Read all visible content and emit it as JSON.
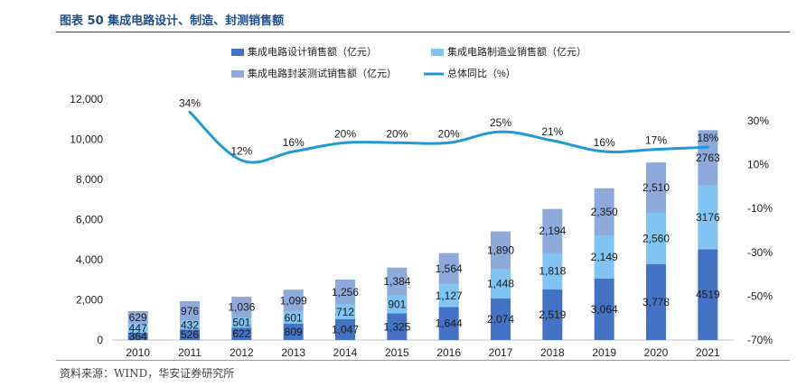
{
  "header": {
    "title": "图表 50 集成电路设计、制造、封测销售额"
  },
  "footer": {
    "source": "资料来源：WIND，华安证券研究所"
  },
  "chart_data": {
    "type": "bar",
    "stacked": true,
    "title": "图表 50 集成电路设计、制造、封测销售额",
    "categories": [
      "2010",
      "2011",
      "2012",
      "2013",
      "2014",
      "2015",
      "2016",
      "2017",
      "2018",
      "2019",
      "2020",
      "2021"
    ],
    "series": [
      {
        "name": "集成电路设计销售额（亿元）",
        "type": "bar",
        "axis": "left",
        "color": "#4472c4",
        "values": [
          364,
          526,
          622,
          809,
          1047,
          1325,
          1644,
          2074,
          2519,
          3064,
          3778,
          4519
        ],
        "labels": [
          "364",
          "526",
          "622",
          "809",
          "1,047",
          "1,325",
          "1,644",
          "2,074",
          "2,519",
          "3,064",
          "3,778",
          "4519"
        ]
      },
      {
        "name": "集成电路制造业销售额（亿元）",
        "type": "bar",
        "axis": "left",
        "color": "#7fc4f2",
        "values": [
          447,
          432,
          501,
          601,
          712,
          901,
          1127,
          1448,
          1818,
          2149,
          2560,
          3176
        ],
        "labels": [
          "447",
          "432",
          "501",
          "601",
          "712",
          "901",
          "1,127",
          "1,448",
          "1,818",
          "2,149",
          "2,560",
          "3176"
        ]
      },
      {
        "name": "集成电路封装测试销售额（亿元）",
        "type": "bar",
        "axis": "left",
        "color": "#8eaadb",
        "values": [
          629,
          976,
          1036,
          1099,
          1256,
          1384,
          1564,
          1890,
          2194,
          2350,
          2510,
          2763
        ],
        "labels": [
          "629",
          "976",
          "1,036",
          "1,099",
          "1,256",
          "1,384",
          "1,564",
          "1,890",
          "2,194",
          "2,350",
          "2,510",
          "2763"
        ]
      },
      {
        "name": "总体同比（%）",
        "type": "line",
        "axis": "right",
        "color": "#1f9ad6",
        "values": [
          null,
          34,
          12,
          16,
          20,
          20,
          20,
          25,
          21,
          16,
          17,
          18
        ],
        "labels": [
          "",
          "34%",
          "12%",
          "16%",
          "20%",
          "20%",
          "20%",
          "25%",
          "21%",
          "16%",
          "17%",
          "18%"
        ]
      }
    ],
    "y_left": {
      "ylim": [
        0,
        12000
      ],
      "ticks": [
        0,
        2000,
        4000,
        6000,
        8000,
        10000,
        12000
      ],
      "tick_labels": [
        "0",
        "2,000",
        "4,000",
        "6,000",
        "8,000",
        "10,000",
        "12,000"
      ]
    },
    "y_right": {
      "ylim": [
        -70,
        40
      ],
      "ticks": [
        30,
        10,
        -10,
        -30,
        -50,
        -70
      ],
      "tick_labels": [
        "30%",
        "10%",
        "-10%",
        "-30%",
        "-50%",
        "-70%"
      ]
    },
    "grid": false,
    "legend": "top"
  }
}
